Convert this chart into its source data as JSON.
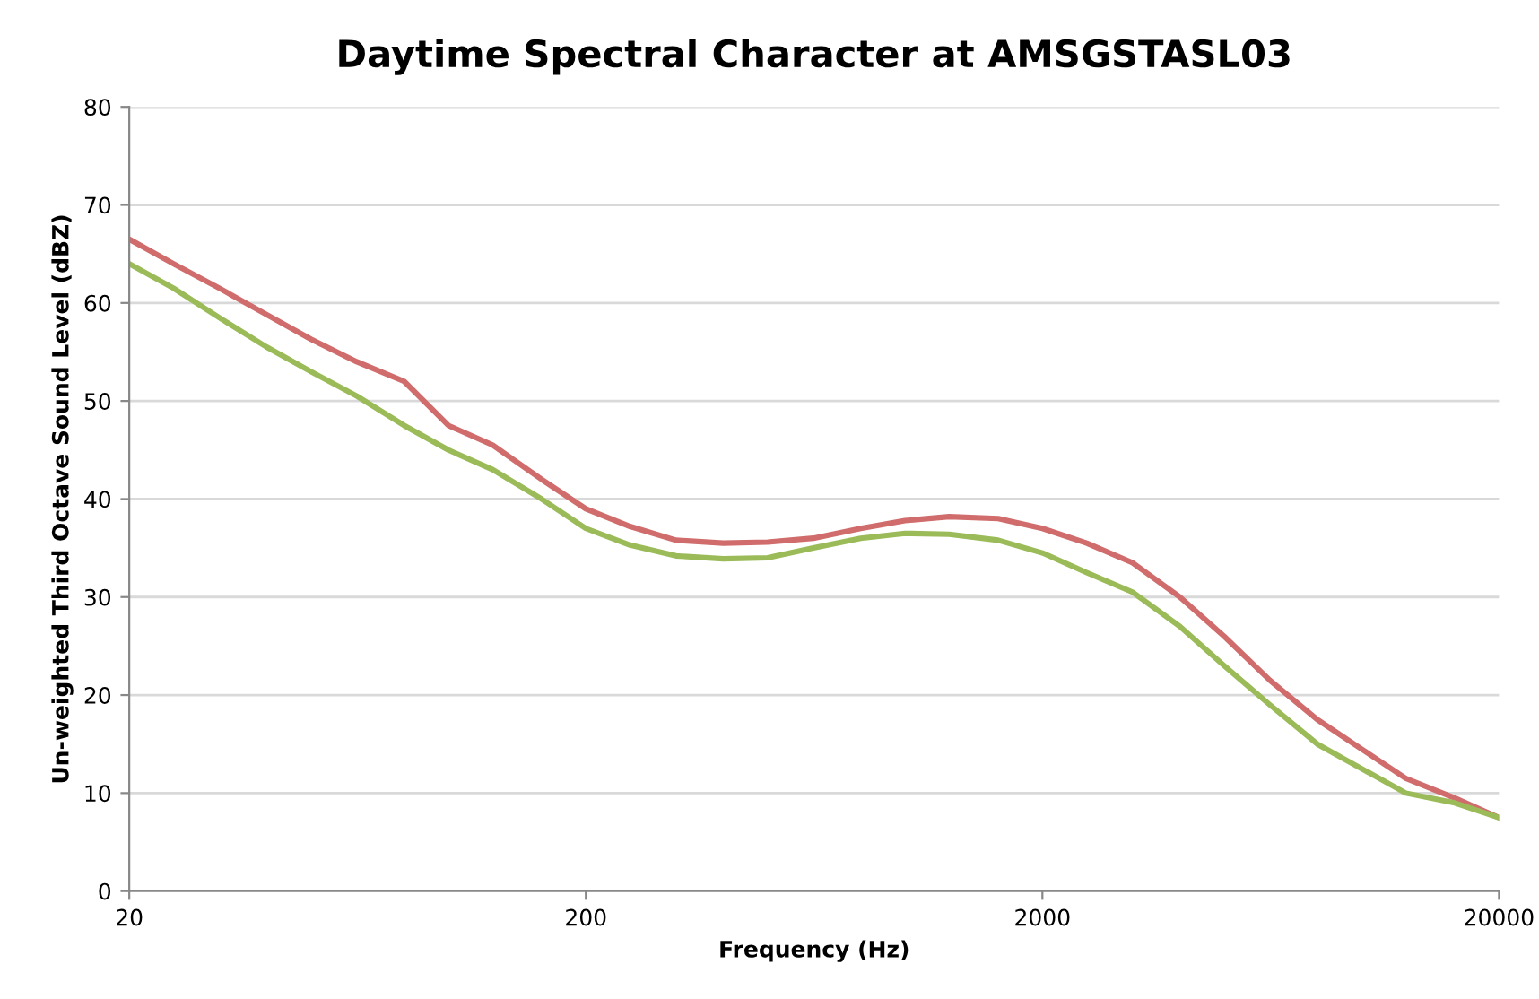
{
  "chart_data": {
    "type": "line",
    "title": "Daytime Spectral Character at AMSGSTASL03",
    "xlabel": "Frequency (Hz)",
    "ylabel": "Un-weighted Third Octave Sound Level (dBZ)",
    "x": [
      20,
      25,
      31.5,
      40,
      50,
      63,
      80,
      100,
      125,
      160,
      200,
      250,
      315,
      400,
      500,
      630,
      800,
      1000,
      1250,
      1600,
      2000,
      2500,
      3150,
      4000,
      5000,
      6300,
      8000,
      10000,
      12500,
      16000,
      20000
    ],
    "series": [
      {
        "color": "#d06c6c",
        "values": [
          66.5,
          64,
          61.5,
          58.8,
          56.3,
          54,
          52,
          47.5,
          45.5,
          42,
          39,
          37.2,
          35.8,
          35.5,
          35.6,
          36,
          37,
          37.8,
          38.2,
          38,
          37,
          35.5,
          33.5,
          30,
          26,
          21.5,
          17.5,
          14.5,
          11.5,
          9.5,
          7.5
        ]
      },
      {
        "color": "#9bbb59",
        "values": [
          64,
          61.5,
          58.5,
          55.5,
          53,
          50.5,
          47.5,
          45,
          43,
          40,
          37,
          35.3,
          34.2,
          33.9,
          34,
          35,
          36,
          36.5,
          36.4,
          35.8,
          34.5,
          32.5,
          30.5,
          27,
          23,
          19,
          15,
          12.5,
          10,
          9,
          7.5
        ]
      }
    ],
    "log": "x",
    "xlim": [
      20,
      20000
    ],
    "xticks": [
      20,
      200,
      2000,
      20000
    ],
    "ylim": [
      0,
      80
    ],
    "yticks": [
      0,
      10,
      20,
      30,
      40,
      50,
      60,
      70,
      80
    ],
    "grid": "y",
    "marker": "none",
    "line_style": "solid"
  }
}
